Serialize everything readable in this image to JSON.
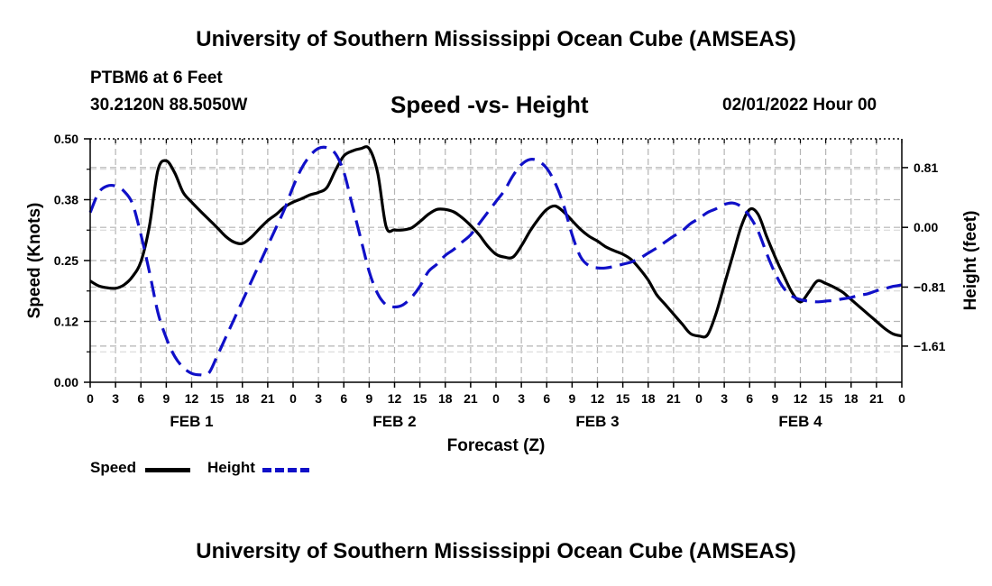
{
  "header": {
    "title": "University of Southern Mississippi Ocean Cube (AMSEAS)",
    "station": "PTBM6 at 6 Feet",
    "coordinates": "30.2120N  88.5050W",
    "subtitle": "Speed -vs- Height",
    "datetime": "02/01/2022 Hour 00"
  },
  "footer": {
    "title": "University of Southern Mississippi Ocean Cube (AMSEAS)"
  },
  "legend": {
    "speed_label": "Speed",
    "height_label": "Height"
  },
  "colors": {
    "speed": "#000000",
    "height": "#1010c8",
    "grid": "#b4b4b4"
  },
  "chart_data": {
    "type": "line",
    "title": "Speed -vs- Height",
    "xlabel": "Forecast (Z)",
    "ylabel": "Speed (Knots)",
    "y2label": "Height (feet)",
    "xlim": [
      0,
      96
    ],
    "ylim": [
      0,
      0.5
    ],
    "y2lim": [
      -2.1,
      1.2
    ],
    "grid": true,
    "legend_position": "bottom-left",
    "x_tick_labels": [
      "0",
      "3",
      "6",
      "9",
      "12",
      "15",
      "18",
      "21",
      "0",
      "3",
      "6",
      "9",
      "12",
      "15",
      "18",
      "21",
      "0",
      "3",
      "6",
      "9",
      "12",
      "15",
      "18",
      "21",
      "0",
      "3",
      "6",
      "9",
      "12",
      "15",
      "18",
      "21",
      "0"
    ],
    "day_labels": [
      {
        "label": "FEB 1",
        "x": 12
      },
      {
        "label": "FEB 2",
        "x": 36
      },
      {
        "label": "FEB 3",
        "x": 60
      },
      {
        "label": "FEB 4",
        "x": 84
      }
    ],
    "y_ticks": [
      "0.00",
      "0.12",
      "0.25",
      "0.38",
      "0.50"
    ],
    "y2_ticks": [
      "0.81",
      "0.00",
      "−0.81",
      "−1.61"
    ],
    "y2_tick_values": [
      0.81,
      0,
      -0.81,
      -1.61
    ],
    "series": [
      {
        "name": "Speed",
        "axis": "left",
        "style": "solid",
        "x": [
          0,
          1,
          2,
          3,
          4,
          5,
          6,
          7,
          8,
          9,
          10,
          11,
          12,
          13,
          14,
          15,
          16,
          17,
          18,
          19,
          20,
          21,
          22,
          23,
          24,
          25,
          26,
          27,
          28,
          29,
          30,
          31,
          32,
          33,
          34,
          35,
          36,
          37,
          38,
          39,
          40,
          41,
          42,
          43,
          44,
          45,
          46,
          47,
          48,
          49,
          50,
          51,
          52,
          53,
          54,
          55,
          56,
          57,
          58,
          59,
          60,
          61,
          62,
          63,
          64,
          65,
          66,
          67,
          68,
          69,
          70,
          71,
          72,
          73,
          74,
          75,
          76,
          77,
          78,
          79,
          80,
          81,
          82,
          83,
          84,
          85,
          86,
          87,
          88,
          89,
          90,
          91,
          92,
          93,
          94,
          95,
          96
        ],
        "values": [
          0.208,
          0.198,
          0.194,
          0.193,
          0.2,
          0.217,
          0.248,
          0.32,
          0.435,
          0.455,
          0.43,
          0.39,
          0.37,
          0.352,
          0.335,
          0.318,
          0.3,
          0.288,
          0.285,
          0.297,
          0.315,
          0.332,
          0.345,
          0.36,
          0.37,
          0.377,
          0.385,
          0.39,
          0.4,
          0.435,
          0.465,
          0.475,
          0.48,
          0.48,
          0.43,
          0.32,
          0.313,
          0.313,
          0.317,
          0.33,
          0.345,
          0.355,
          0.355,
          0.35,
          0.338,
          0.322,
          0.303,
          0.28,
          0.263,
          0.257,
          0.257,
          0.28,
          0.31,
          0.335,
          0.355,
          0.362,
          0.35,
          0.332,
          0.314,
          0.3,
          0.29,
          0.278,
          0.27,
          0.263,
          0.252,
          0.233,
          0.21,
          0.18,
          0.16,
          0.14,
          0.12,
          0.1,
          0.095,
          0.097,
          0.14,
          0.2,
          0.26,
          0.32,
          0.355,
          0.345,
          0.3,
          0.258,
          0.22,
          0.185,
          0.165,
          0.185,
          0.208,
          0.203,
          0.195,
          0.185,
          0.17,
          0.155,
          0.14,
          0.125,
          0.11,
          0.099,
          0.095
        ]
      },
      {
        "name": "Height",
        "axis": "right",
        "style": "dashed",
        "x": [
          0,
          1,
          2,
          3,
          4,
          5,
          6,
          7,
          8,
          9,
          10,
          11,
          12,
          13,
          14,
          15,
          16,
          17,
          18,
          19,
          20,
          21,
          22,
          23,
          24,
          25,
          26,
          27,
          28,
          29,
          30,
          31,
          32,
          33,
          34,
          35,
          36,
          37,
          38,
          39,
          40,
          41,
          42,
          43,
          44,
          45,
          46,
          47,
          48,
          49,
          50,
          51,
          52,
          53,
          54,
          55,
          56,
          57,
          58,
          59,
          60,
          61,
          62,
          63,
          64,
          65,
          66,
          67,
          68,
          69,
          70,
          71,
          72,
          73,
          74,
          75,
          76,
          77,
          78,
          79,
          80,
          81,
          82,
          83,
          84,
          85,
          86,
          87,
          88,
          89,
          90,
          91,
          92,
          93,
          94,
          95,
          96
        ],
        "values": [
          0.2,
          0.47,
          0.56,
          0.56,
          0.49,
          0.32,
          -0.1,
          -0.6,
          -1.15,
          -1.5,
          -1.75,
          -1.9,
          -1.98,
          -2.0,
          -1.98,
          -1.75,
          -1.5,
          -1.25,
          -1.0,
          -0.75,
          -0.5,
          -0.25,
          0.0,
          0.25,
          0.55,
          0.8,
          0.97,
          1.07,
          1.08,
          1.0,
          0.75,
          0.3,
          -0.15,
          -0.6,
          -0.9,
          -1.05,
          -1.08,
          -1.05,
          -0.95,
          -0.8,
          -0.6,
          -0.5,
          -0.38,
          -0.3,
          -0.2,
          -0.1,
          0.05,
          0.2,
          0.35,
          0.5,
          0.7,
          0.85,
          0.92,
          0.9,
          0.8,
          0.6,
          0.3,
          -0.1,
          -0.4,
          -0.52,
          -0.55,
          -0.55,
          -0.53,
          -0.5,
          -0.47,
          -0.42,
          -0.35,
          -0.28,
          -0.2,
          -0.12,
          -0.05,
          0.05,
          0.12,
          0.2,
          0.25,
          0.31,
          0.33,
          0.28,
          0.15,
          -0.05,
          -0.35,
          -0.62,
          -0.82,
          -0.93,
          -0.98,
          -1.0,
          -1.01,
          -1.0,
          -0.99,
          -0.97,
          -0.95,
          -0.92,
          -0.9,
          -0.86,
          -0.83,
          -0.8,
          -0.78
        ]
      }
    ]
  }
}
